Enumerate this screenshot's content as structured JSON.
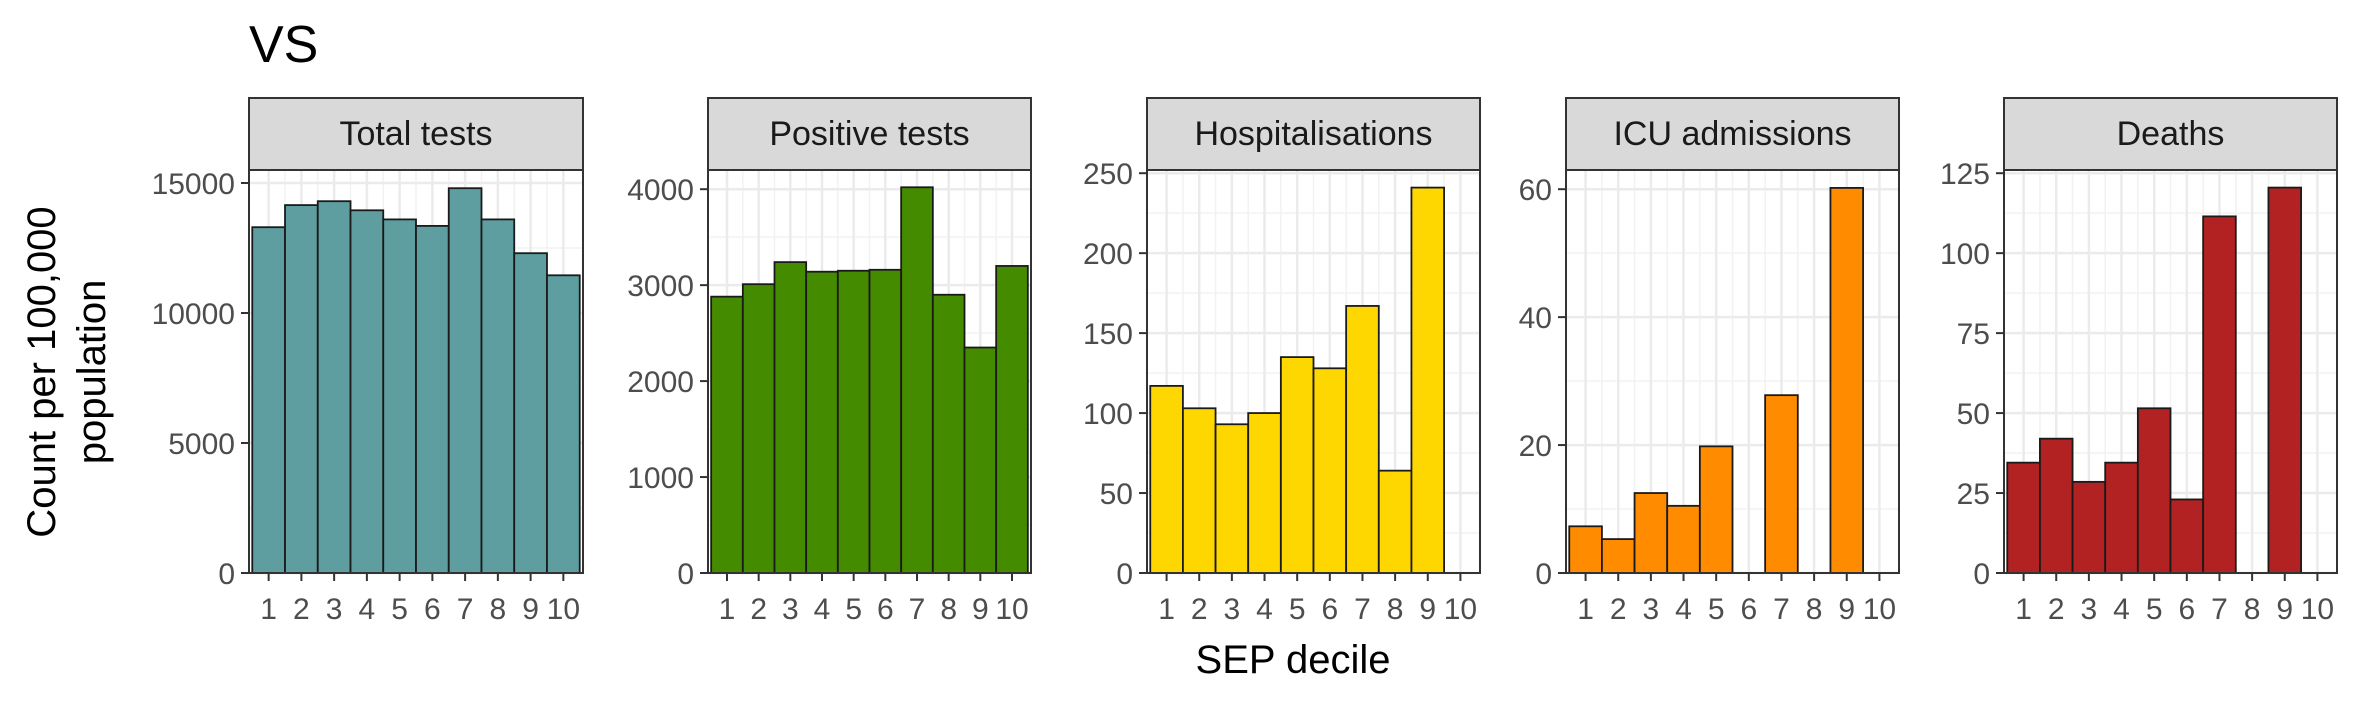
{
  "chart_data": {
    "type": "bar",
    "title": "VS",
    "xlabel": "SEP decile",
    "ylabel": "Count per 100,000 population",
    "ylabel_lines": [
      "Count per 100,000",
      "population"
    ],
    "grid": true,
    "legend": "none",
    "categories": [
      "1",
      "2",
      "3",
      "4",
      "5",
      "6",
      "7",
      "8",
      "9",
      "10"
    ],
    "facets": [
      {
        "name": "Total tests",
        "color": "#5F9EA0",
        "ylim": [
          0,
          15500
        ],
        "yticks": [
          0,
          5000,
          10000,
          15000
        ],
        "ytick_labels": [
          "0",
          "5000",
          "10000",
          "15000"
        ],
        "values": [
          13300,
          14150,
          14300,
          13950,
          13600,
          13350,
          14800,
          13600,
          12300,
          11450
        ]
      },
      {
        "name": "Positive tests",
        "color": "#458B00",
        "ylim": [
          0,
          4200
        ],
        "yticks": [
          0,
          1000,
          2000,
          3000,
          4000
        ],
        "ytick_labels": [
          "0",
          "1000",
          "2000",
          "3000",
          "4000"
        ],
        "values": [
          2880,
          3010,
          3240,
          3140,
          3150,
          3160,
          4020,
          2900,
          2350,
          3200
        ]
      },
      {
        "name": "Hospitalisations",
        "color": "#FFD700",
        "ylim": [
          0,
          252
        ],
        "yticks": [
          0,
          50,
          100,
          150,
          200,
          250
        ],
        "ytick_labels": [
          "0",
          "50",
          "100",
          "150",
          "200",
          "250"
        ],
        "values": [
          117,
          103,
          93,
          100,
          135,
          128,
          167,
          64,
          241,
          0
        ]
      },
      {
        "name": "ICU admissions",
        "color": "#FF8C00",
        "ylim": [
          0,
          63
        ],
        "yticks": [
          0,
          20,
          40,
          60
        ],
        "ytick_labels": [
          "0",
          "20",
          "40",
          "60"
        ],
        "values": [
          7.3,
          5.3,
          12.5,
          10.5,
          19.8,
          0,
          27.8,
          0,
          60.2,
          0
        ]
      },
      {
        "name": "Deaths",
        "color": "#B22222",
        "ylim": [
          0,
          126
        ],
        "yticks": [
          0,
          25,
          50,
          75,
          100,
          125
        ],
        "ytick_labels": [
          "0",
          "25",
          "50",
          "75",
          "100",
          "125"
        ],
        "values": [
          34.5,
          42,
          28.5,
          34.5,
          51.5,
          23,
          111.5,
          0,
          120.5,
          0
        ]
      }
    ]
  }
}
